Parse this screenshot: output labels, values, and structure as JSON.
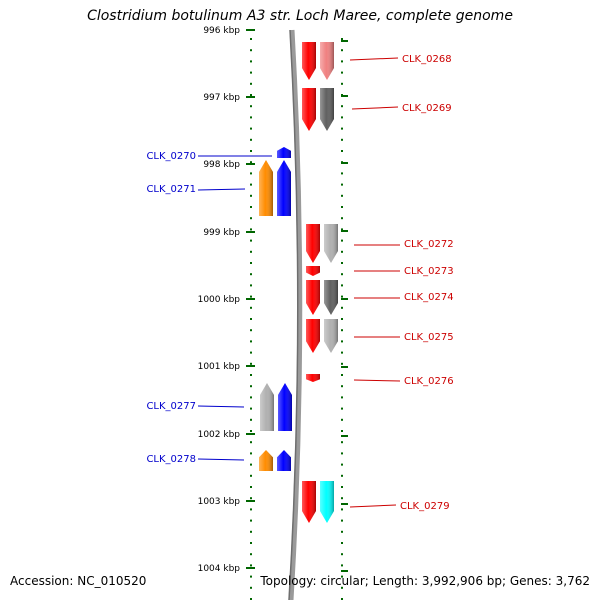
{
  "header": {
    "title": "Clostridium botulinum A3 str. Loch Maree, complete genome"
  },
  "footer": {
    "accession": "Accession: NC_010520",
    "topology": "Topology: circular; Length: 3,992,906 bp; Genes: 3,762"
  },
  "colors": {
    "forward_label": "#cc0000",
    "reverse_label": "#0000cc",
    "tick": "#006600",
    "backbone": "#808080"
  },
  "ruler": {
    "labels": [
      "996 kbp",
      "997 kbp",
      "998 kbp",
      "999 kbp",
      "1000 kbp",
      "1001 kbp",
      "1002 kbp",
      "1003 kbp",
      "1004 kbp"
    ]
  },
  "genes": [
    {
      "label": "CLK_0268",
      "strand": "forward",
      "colors": [
        "#ff0000",
        "#f08080"
      ]
    },
    {
      "label": "CLK_0269",
      "strand": "forward",
      "colors": [
        "#ff0000",
        "#606060"
      ]
    },
    {
      "label": "CLK_0270",
      "strand": "reverse",
      "colors": [
        "#0000ff"
      ]
    },
    {
      "label": "CLK_0271",
      "strand": "reverse",
      "colors": [
        "#ff8c00",
        "#0000ff"
      ]
    },
    {
      "label": "CLK_0272",
      "strand": "forward",
      "colors": [
        "#ff0000",
        "#b0b0b0"
      ]
    },
    {
      "label": "CLK_0273",
      "strand": "forward",
      "colors": [
        "#ff0000"
      ]
    },
    {
      "label": "CLK_0274",
      "strand": "forward",
      "colors": [
        "#ff0000",
        "#606060"
      ]
    },
    {
      "label": "CLK_0275",
      "strand": "forward",
      "colors": [
        "#ff0000",
        "#b0b0b0"
      ]
    },
    {
      "label": "CLK_0276",
      "strand": "forward",
      "colors": [
        "#ff0000"
      ]
    },
    {
      "label": "CLK_0277",
      "strand": "reverse",
      "colors": [
        "#b0b0b0",
        "#0000ff"
      ]
    },
    {
      "label": "CLK_0278",
      "strand": "reverse",
      "colors": [
        "#ff8c00",
        "#0000ff"
      ]
    },
    {
      "label": "CLK_0279",
      "strand": "forward",
      "colors": [
        "#ff0000",
        "#00ffff"
      ]
    }
  ]
}
